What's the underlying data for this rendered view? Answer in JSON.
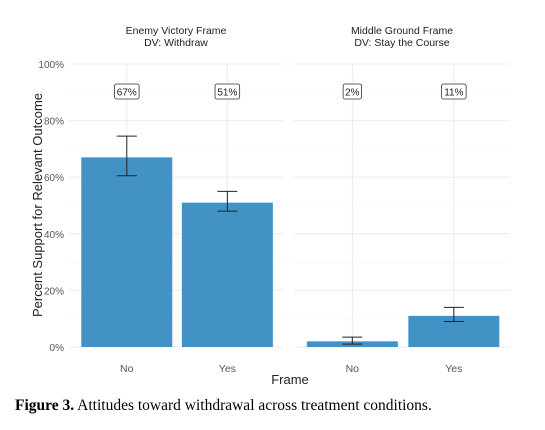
{
  "chart_data": {
    "type": "bar",
    "xlabel": "Frame",
    "ylabel": "Percent Support for Relevant Outcome",
    "ylim": [
      0,
      100
    ],
    "yticks": [
      "0%",
      "20%",
      "40%",
      "60%",
      "80%",
      "100%"
    ],
    "bar_color": "#4292c6",
    "grid": true,
    "panels": [
      {
        "title_line1": "Enemy Victory Frame",
        "title_line2": "DV: Withdraw",
        "categories": [
          "No",
          "Yes"
        ],
        "values": [
          67,
          51
        ],
        "labels": [
          "67%",
          "51%"
        ],
        "error_low": [
          60.5,
          48
        ],
        "error_high": [
          74.5,
          55
        ]
      },
      {
        "title_line1": "Middle Ground Frame",
        "title_line2": "DV: Stay the Course",
        "categories": [
          "No",
          "Yes"
        ],
        "values": [
          2,
          11
        ],
        "labels": [
          "2%",
          "11%"
        ],
        "error_low": [
          1,
          9
        ],
        "error_high": [
          3.5,
          14
        ]
      }
    ]
  },
  "caption": {
    "label": "Figure 3.",
    "text": " Attitudes toward withdrawal across treatment conditions."
  }
}
